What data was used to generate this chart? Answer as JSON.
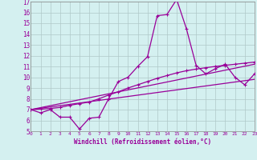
{
  "xlabel": "Windchill (Refroidissement éolien,°C)",
  "xlim": [
    0,
    23
  ],
  "ylim": [
    5,
    17
  ],
  "xticks": [
    0,
    1,
    2,
    3,
    4,
    5,
    6,
    7,
    8,
    9,
    10,
    11,
    12,
    13,
    14,
    15,
    16,
    17,
    18,
    19,
    20,
    21,
    22,
    23
  ],
  "yticks": [
    5,
    6,
    7,
    8,
    9,
    10,
    11,
    12,
    13,
    14,
    15,
    16,
    17
  ],
  "background_color": "#d4f0f0",
  "line_color": "#990099",
  "grid_color": "#b0c8c8",
  "line1_x": [
    0,
    1,
    2,
    3,
    4,
    5,
    6,
    7,
    8,
    9,
    10,
    11,
    12,
    13,
    14,
    15,
    16,
    17,
    18,
    19,
    20,
    21,
    22,
    23
  ],
  "line1_y": [
    7.0,
    6.7,
    7.0,
    6.3,
    6.3,
    5.2,
    6.2,
    6.3,
    8.0,
    9.6,
    10.0,
    11.0,
    11.9,
    15.7,
    15.8,
    17.2,
    14.5,
    11.1,
    10.3,
    10.8,
    11.2,
    10.0,
    9.3,
    10.3
  ],
  "line2_x": [
    0,
    1,
    2,
    3,
    4,
    5,
    6,
    7,
    8,
    9,
    10,
    11,
    12,
    13,
    14,
    15,
    16,
    17,
    18,
    19,
    20,
    21,
    22,
    23
  ],
  "line2_y": [
    7.0,
    7.05,
    7.1,
    7.2,
    7.4,
    7.55,
    7.7,
    8.0,
    8.35,
    8.65,
    9.0,
    9.3,
    9.6,
    9.9,
    10.15,
    10.4,
    10.6,
    10.75,
    10.88,
    11.0,
    11.1,
    11.2,
    11.3,
    11.4
  ],
  "line3_x": [
    0,
    23
  ],
  "line3_y": [
    7.0,
    11.2
  ],
  "line4_x": [
    0,
    23
  ],
  "line4_y": [
    7.0,
    9.8
  ]
}
